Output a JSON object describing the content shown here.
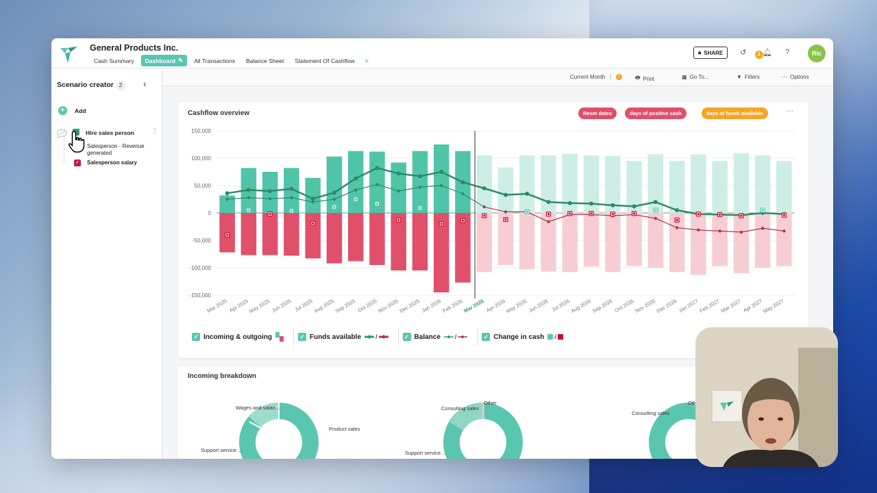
{
  "header": {
    "company": "General Products Inc.",
    "tabs": [
      "Cash Summary",
      "Dashboard",
      "All Transactions",
      "Balance Sheet",
      "Statement Of Cashflow"
    ],
    "share_label": "SHARE",
    "notif_count": "1",
    "avatar_initials": "Ric"
  },
  "sidebar": {
    "title": "Scenario creator",
    "count": "2",
    "add_label": "Add",
    "scenario_name": "Hire sales person",
    "items": [
      "Salesperson - Revenue generated",
      "Salesperson salary"
    ]
  },
  "toolbar": {
    "current_month": "Current Month",
    "warn": "!",
    "print": "Print",
    "goto": "Go To...",
    "filters": "Filters",
    "options": "Options"
  },
  "card": {
    "title": "Cashflow overview",
    "pills": [
      "Reset dates",
      "days of positive cash",
      "days of funds available"
    ]
  },
  "legend": [
    {
      "label": "Incoming & outgoing",
      "symbol": ""
    },
    {
      "label": "Funds available",
      "symbol": "/"
    },
    {
      "label": "Balance",
      "symbol": "/"
    },
    {
      "label": "Change in cash",
      "symbol": "/"
    }
  ],
  "breakdown": {
    "title": "Incoming breakdown",
    "labels": [
      "Wages and salari...",
      "Product sales",
      "Support service ...",
      "Consulting sales",
      "Other",
      "Support service ...",
      "Consulting sales",
      "Oth"
    ]
  },
  "chart_data": {
    "type": "bar",
    "categories": [
      "Mar 2025",
      "Apr 2025",
      "May 2025",
      "Jun 2025",
      "Jul 2025",
      "Aug 2025",
      "Sep 2025",
      "Oct 2025",
      "Nov 2025",
      "Dec 2025",
      "Jan 2026",
      "Feb 2026",
      "Mar 2026",
      "Apr 2026",
      "May 2026",
      "Jun 2026",
      "Jul 2026",
      "Aug 2026",
      "Sep 2026",
      "Oct 2026",
      "Nov 2026",
      "Dec 2026",
      "Jan 2027",
      "Feb 2027",
      "Mar 2027",
      "Apr 2027",
      "May 2027"
    ],
    "current_index": 12,
    "ylim": [
      -150000,
      150000
    ],
    "yticks": [
      "150,000",
      "100,000",
      "50,000",
      "0",
      "-50,000",
      "-100,000",
      "-150,000"
    ],
    "series": [
      {
        "name": "Incoming",
        "values": [
          32000,
          82000,
          75000,
          82000,
          64000,
          103000,
          113000,
          112000,
          92000,
          113000,
          125000,
          113000,
          105000,
          83000,
          105000,
          105000,
          108000,
          105000,
          104000,
          95000,
          107000,
          95000,
          107000,
          95000,
          109000,
          105000,
          95000
        ]
      },
      {
        "name": "Outgoing",
        "values": [
          -72000,
          -77000,
          -77000,
          -78000,
          -83000,
          -92000,
          -88000,
          -95000,
          -105000,
          -105000,
          -145000,
          -127000,
          -108000,
          -95000,
          -103000,
          -107000,
          -108000,
          -98000,
          -108000,
          -97000,
          -100000,
          -108000,
          -113000,
          -97000,
          -110000,
          -100000,
          -97000
        ]
      },
      {
        "name": "Funds available",
        "values": [
          36000,
          42000,
          40000,
          44000,
          26000,
          37000,
          63000,
          82000,
          72000,
          67000,
          75000,
          56000,
          45000,
          33000,
          35000,
          20000,
          18000,
          17000,
          14000,
          12000,
          20000,
          5000,
          -2000,
          -3000,
          -4000,
          0,
          -2000
        ]
      },
      {
        "name": "Balance",
        "values": [
          25000,
          28000,
          26000,
          28000,
          20000,
          25000,
          42000,
          52000,
          40000,
          47000,
          50000,
          35000,
          11000,
          2000,
          2000,
          -16000,
          -3000,
          -3000,
          -5000,
          -3000,
          -10000,
          -27000,
          -31000,
          -33000,
          -35000,
          -28000,
          -33000
        ]
      },
      {
        "name": "Change in cash",
        "values": [
          -40000,
          5000,
          -2000,
          4000,
          -19000,
          11000,
          25000,
          17000,
          -13000,
          9000,
          -20000,
          -14000,
          -5000,
          -12000,
          2000,
          -2000,
          -1000,
          -1000,
          -2000,
          -1000,
          5000,
          -13000,
          -2000,
          -3000,
          -5000,
          5000,
          -4000
        ]
      }
    ]
  }
}
